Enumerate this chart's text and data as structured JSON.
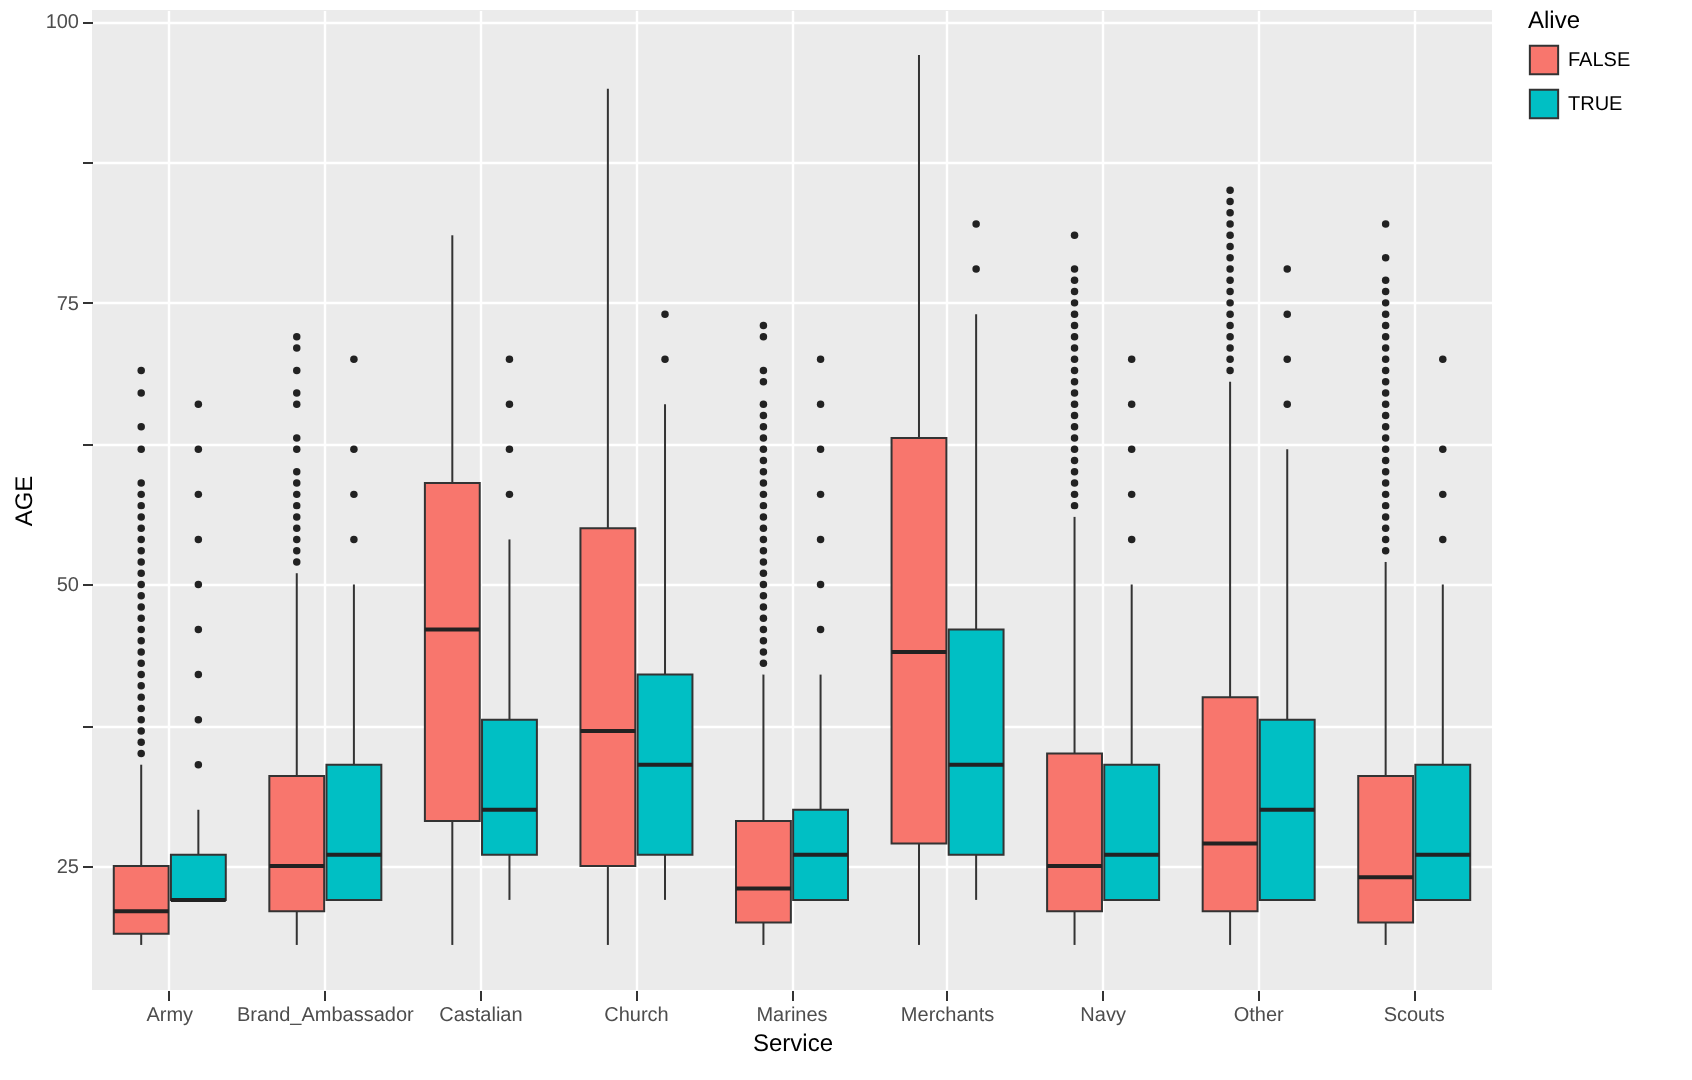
{
  "chart_data": {
    "type": "box",
    "xlabel": "Service",
    "ylabel": "AGE",
    "legend_title": "Alive",
    "categories": [
      "Army",
      "Brand_Ambassador",
      "Castalian",
      "Church",
      "Marines",
      "Merchants",
      "Navy",
      "Other",
      "Scouts"
    ],
    "ylim": [
      14,
      101
    ],
    "yticks": [
      25,
      {
        "value": 37.5,
        "label": null
      },
      50,
      {
        "value": 62.5,
        "label": null
      },
      75,
      {
        "value": 87.5,
        "label": null
      },
      100
    ],
    "grid": true,
    "legend": "right",
    "series": [
      {
        "name": "FALSE",
        "color": "#f8766d",
        "boxes": [
          {
            "low": 18,
            "q1": 19,
            "median": 21,
            "q3": 25,
            "high": 34,
            "outliers": [
              35,
              36,
              37,
              38,
              39,
              40,
              41,
              42,
              43,
              44,
              45,
              46,
              47,
              48,
              49,
              50,
              51,
              52,
              53,
              54,
              55,
              56,
              57,
              58,
              59,
              62,
              64,
              67,
              69
            ]
          },
          {
            "low": 18,
            "q1": 21,
            "median": 25,
            "q3": 33,
            "high": 51,
            "outliers": [
              52,
              53,
              54,
              55,
              56,
              57,
              58,
              59,
              60,
              62,
              63,
              66,
              67,
              69,
              71,
              72
            ]
          },
          {
            "low": 18,
            "q1": 29,
            "median": 46,
            "q3": 59,
            "high": 81
          },
          {
            "low": 18,
            "q1": 25,
            "median": 37,
            "q3": 55,
            "high": 94
          },
          {
            "low": 18,
            "q1": 20,
            "median": 23,
            "q3": 29,
            "high": 42,
            "outliers": [
              43,
              44,
              45,
              46,
              47,
              48,
              49,
              50,
              51,
              52,
              53,
              54,
              55,
              56,
              57,
              58,
              59,
              60,
              61,
              62,
              63,
              64,
              65,
              66,
              68,
              69,
              72,
              73
            ]
          },
          {
            "low": 18,
            "q1": 27,
            "median": 44,
            "q3": 63,
            "high": 97
          },
          {
            "low": 18,
            "q1": 21,
            "median": 25,
            "q3": 35,
            "high": 56,
            "outliers": [
              57,
              58,
              59,
              60,
              61,
              62,
              63,
              64,
              65,
              66,
              67,
              68,
              69,
              70,
              71,
              72,
              73,
              74,
              75,
              76,
              77,
              78,
              81
            ]
          },
          {
            "low": 18,
            "q1": 21,
            "median": 27,
            "q3": 40,
            "high": 68,
            "outliers": [
              69,
              70,
              71,
              72,
              73,
              74,
              75,
              76,
              77,
              78,
              79,
              80,
              81,
              82,
              83,
              84,
              85
            ]
          },
          {
            "low": 18,
            "q1": 20,
            "median": 24,
            "q3": 33,
            "high": 52,
            "outliers": [
              53,
              54,
              55,
              56,
              57,
              58,
              59,
              60,
              61,
              62,
              63,
              64,
              65,
              66,
              67,
              68,
              69,
              70,
              71,
              72,
              73,
              74,
              75,
              76,
              77,
              79,
              82
            ]
          }
        ]
      },
      {
        "name": "TRUE",
        "color": "#00bfc4",
        "boxes": [
          {
            "low": 22,
            "q1": 22,
            "median": 22,
            "q3": 26,
            "high": 30,
            "outliers": [
              34,
              38,
              42,
              46,
              50,
              54,
              58,
              62,
              66
            ]
          },
          {
            "low": 22,
            "q1": 22,
            "median": 26,
            "q3": 34,
            "high": 50,
            "outliers": [
              54,
              58,
              62,
              70
            ]
          },
          {
            "low": 22,
            "q1": 26,
            "median": 30,
            "q3": 38,
            "high": 54,
            "outliers": [
              58,
              62,
              66,
              70
            ]
          },
          {
            "low": 22,
            "q1": 26,
            "median": 34,
            "q3": 42,
            "high": 66,
            "outliers": [
              70,
              74
            ]
          },
          {
            "low": 22,
            "q1": 22,
            "median": 26,
            "q3": 30,
            "high": 42,
            "outliers": [
              46,
              50,
              54,
              58,
              62,
              66,
              70
            ]
          },
          {
            "low": 22,
            "q1": 26,
            "median": 34,
            "q3": 46,
            "high": 74,
            "outliers": [
              78,
              82
            ]
          },
          {
            "low": 22,
            "q1": 22,
            "median": 26,
            "q3": 34,
            "high": 50,
            "outliers": [
              54,
              58,
              62,
              66,
              70
            ]
          },
          {
            "low": 22,
            "q1": 22,
            "median": 30,
            "q3": 38,
            "high": 62,
            "outliers": [
              66,
              70,
              74,
              78
            ]
          },
          {
            "low": 22,
            "q1": 22,
            "median": 26,
            "q3": 34,
            "high": 50,
            "outliers": [
              54,
              58,
              62,
              70
            ]
          }
        ]
      }
    ]
  }
}
